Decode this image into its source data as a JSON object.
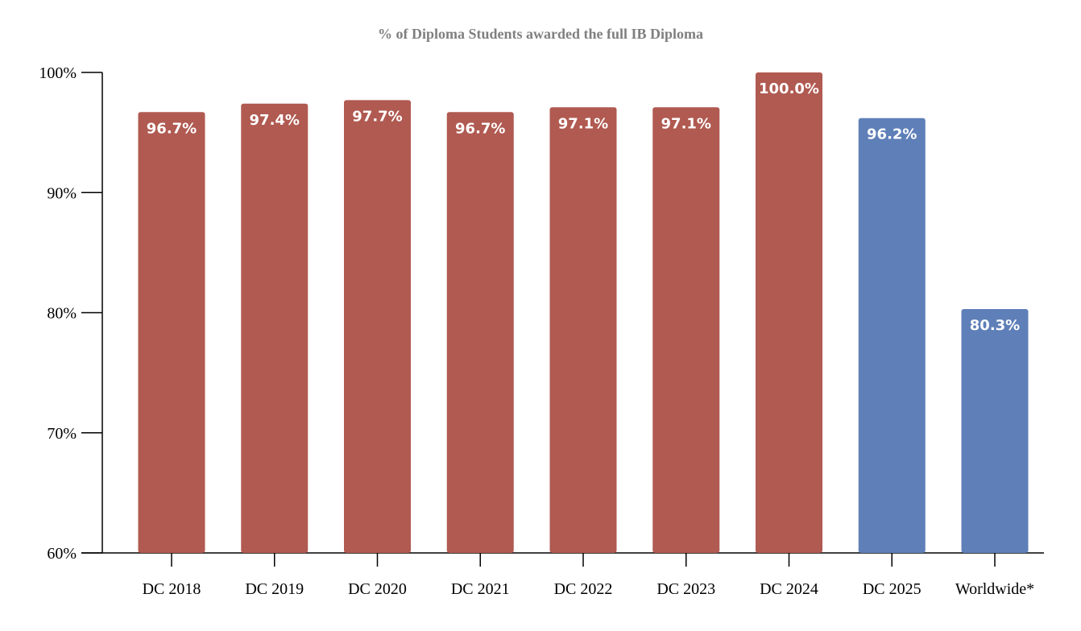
{
  "chart_data": {
    "type": "bar",
    "title": "% of Diploma Students awarded the full IB Diploma",
    "xlabel": "",
    "ylabel": "",
    "ylim": [
      60,
      100
    ],
    "yticks": [
      60,
      70,
      80,
      90,
      100
    ],
    "ytick_labels": [
      "60%",
      "70%",
      "80%",
      "90%",
      "100%"
    ],
    "categories": [
      "DC 2018",
      "DC 2019",
      "DC 2020",
      "DC 2021",
      "DC 2022",
      "DC 2023",
      "DC 2024",
      "DC 2025",
      "Worldwide*"
    ],
    "values": [
      96.7,
      97.4,
      97.7,
      96.7,
      97.1,
      97.1,
      100.0,
      96.2,
      80.3
    ],
    "data_labels": [
      "96.7%",
      "97.4%",
      "97.7%",
      "96.7%",
      "97.1%",
      "97.1%",
      "100.0%",
      "96.2%",
      "80.3%"
    ],
    "bar_colors": [
      "#b05a51",
      "#b05a51",
      "#b05a51",
      "#b05a51",
      "#b05a51",
      "#b05a51",
      "#b05a51",
      "#5e7fb8",
      "#5e7fb8"
    ],
    "grid": false,
    "legend": "none"
  }
}
